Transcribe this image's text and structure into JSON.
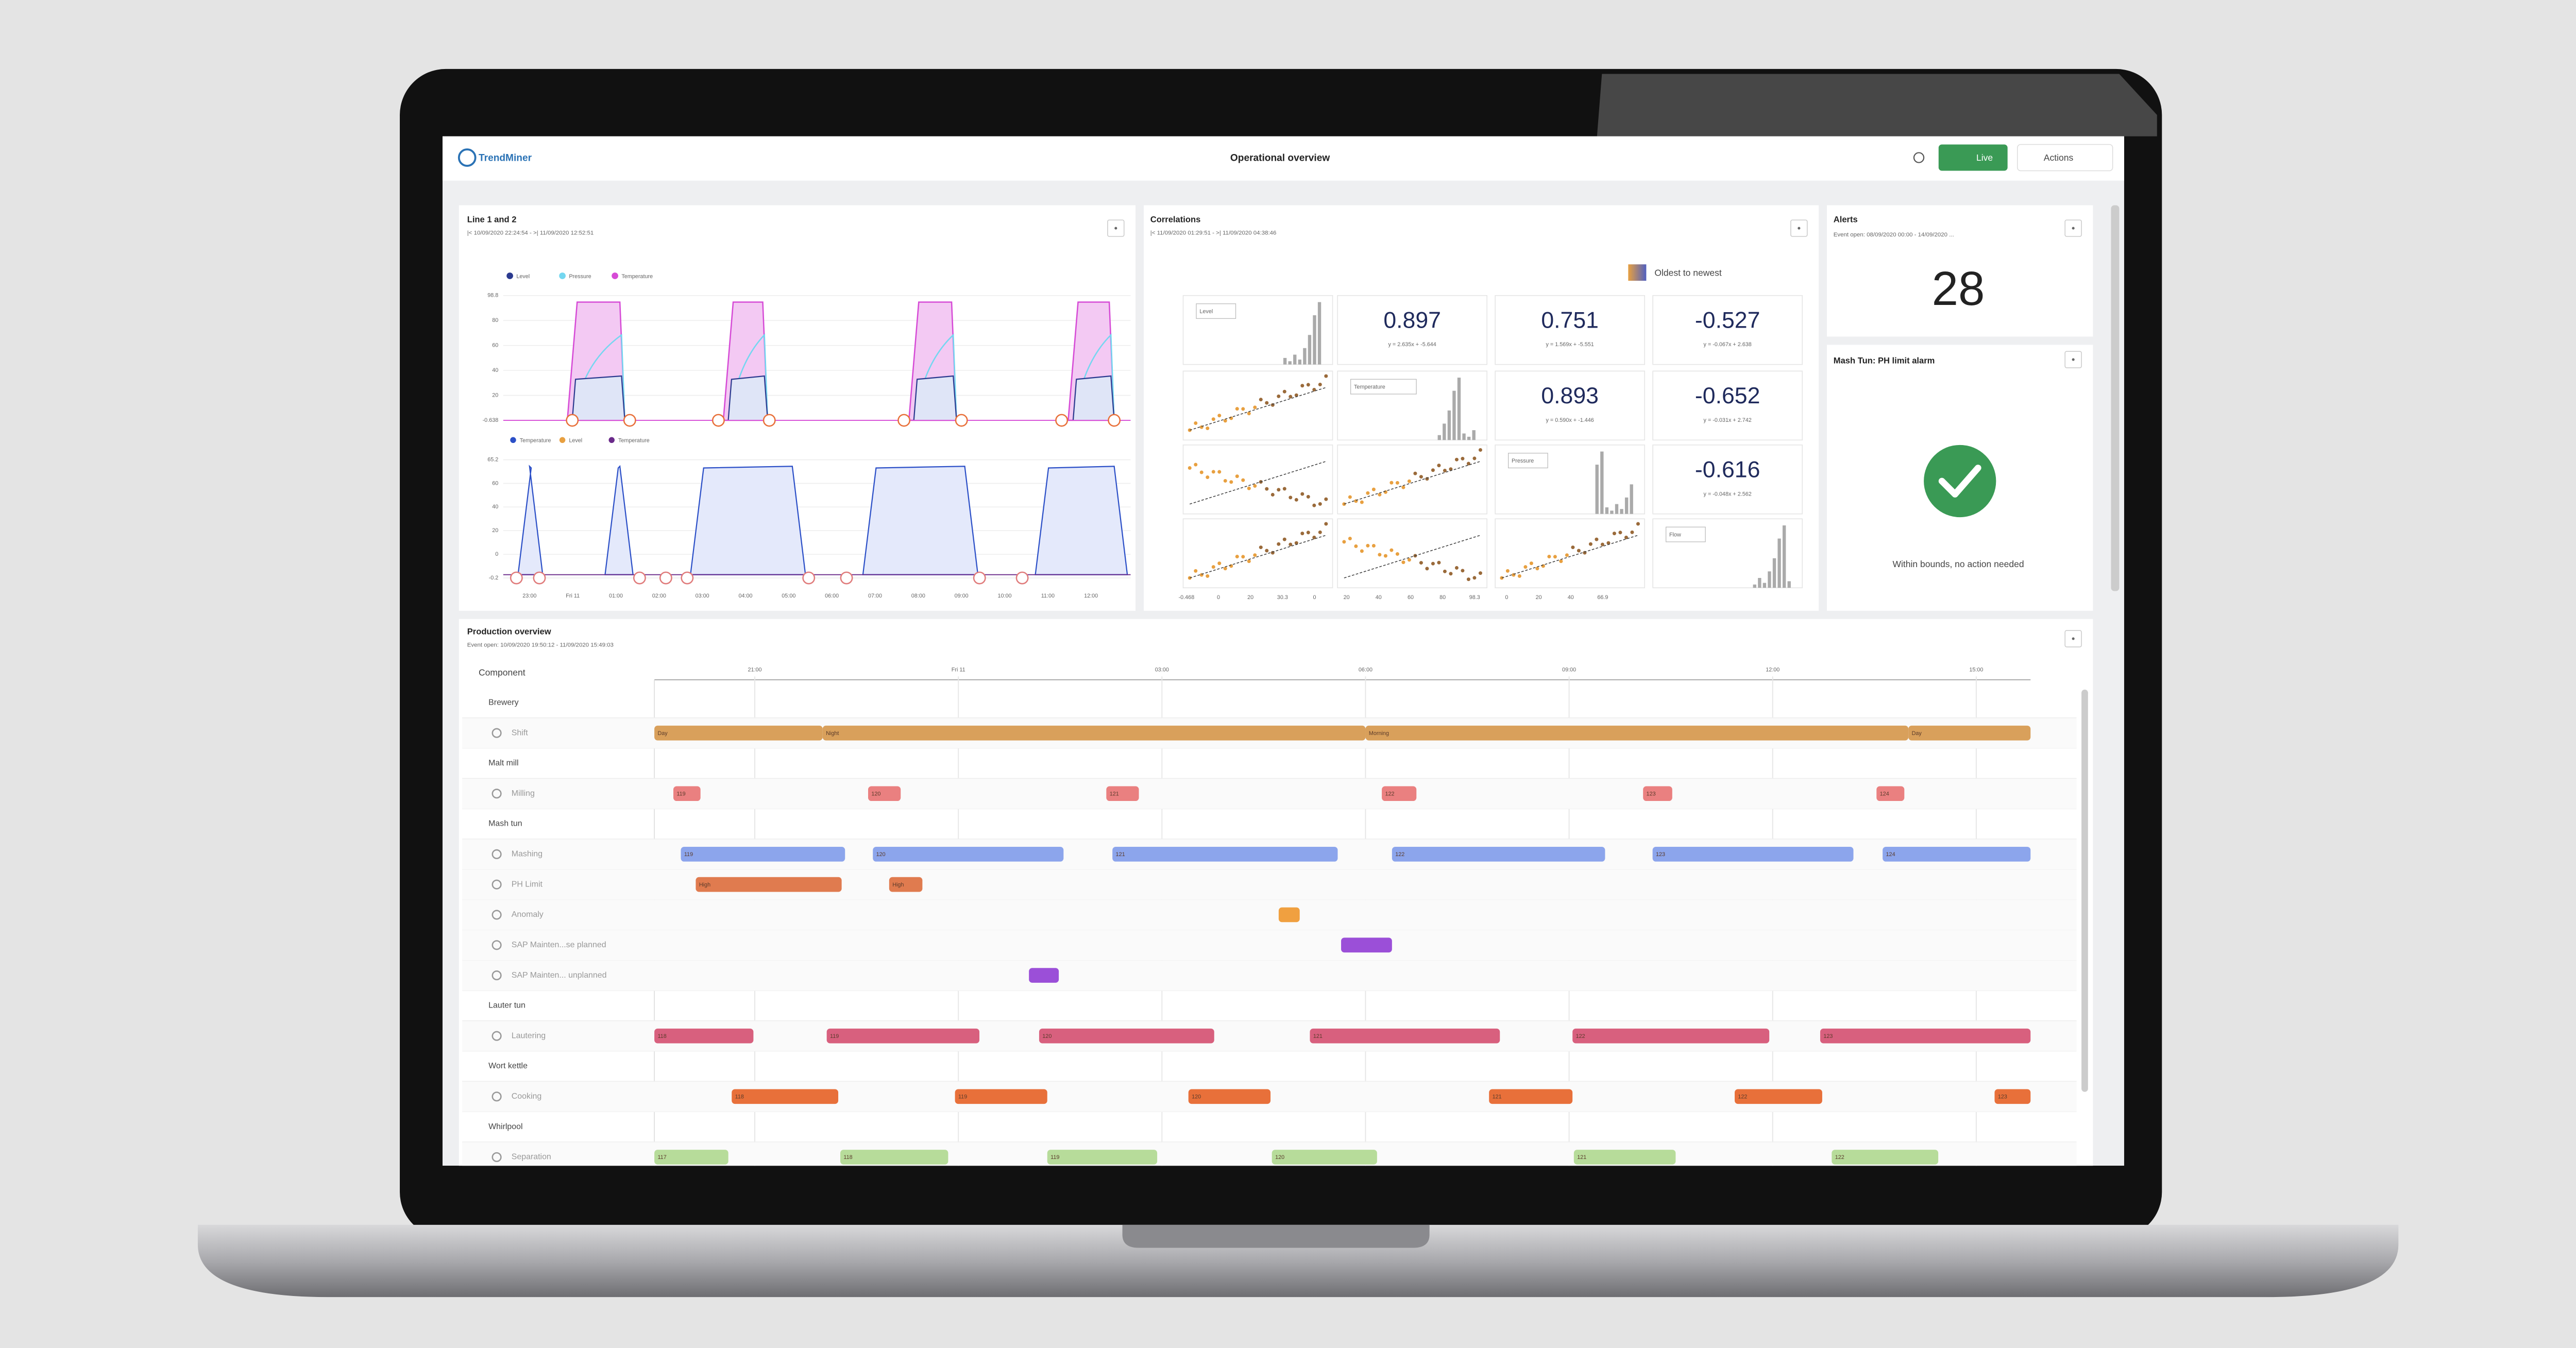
{
  "header": {
    "logo": "TrendMiner",
    "title": "Operational overview",
    "live": "Live",
    "actions": "Actions"
  },
  "line_panel": {
    "title": "Line 1 and 2",
    "subtitle": "|< 10/09/2020 22:24:54 - >| 11/09/2020 12:52:51",
    "legend_top": [
      "Level",
      "Pressure",
      "Temperature"
    ],
    "legend_bottom": [
      "Temperature",
      "Level",
      "Temperature"
    ],
    "yticks_top": [
      "98.8",
      "80",
      "60",
      "40",
      "20",
      "-0.638"
    ],
    "yticks_bottom": [
      "65.2",
      "60",
      "40",
      "20",
      "0",
      "-0.2"
    ],
    "xticks": [
      "23:00",
      "Fri 11",
      "01:00",
      "02:00",
      "03:00",
      "04:00",
      "05:00",
      "06:00",
      "07:00",
      "08:00",
      "09:00",
      "10:00",
      "11:00",
      "12:00"
    ]
  },
  "correlations": {
    "title": "Correlations",
    "subtitle": "|< 11/09/2020 01:29:51 - >| 11/09/2020 04:38:46",
    "legend": "Oldest to newest",
    "tags": [
      "Level",
      "Temperature",
      "Pressure",
      "Flow"
    ],
    "cells": [
      {
        "row": 0,
        "col": 1,
        "r": "0.897",
        "fit": "y = 2.635x + -5.644"
      },
      {
        "row": 0,
        "col": 2,
        "r": "0.751",
        "fit": "y = 1.569x + -5.551"
      },
      {
        "row": 0,
        "col": 3,
        "r": "-0.527",
        "fit": "y = -0.067x + 2.638"
      },
      {
        "row": 1,
        "col": 2,
        "r": "0.893",
        "fit": "y = 0.590x + -1.446"
      },
      {
        "row": 1,
        "col": 3,
        "r": "-0.652",
        "fit": "y = -0.031x + 2.742"
      },
      {
        "row": 2,
        "col": 3,
        "r": "-0.616",
        "fit": "y = -0.048x + 2.562"
      }
    ],
    "xticks": [
      "-0.468",
      "0",
      "20",
      "30.3",
      "0",
      "20",
      "40",
      "60",
      "80",
      "98.3",
      "0",
      "20",
      "40",
      "66.9"
    ]
  },
  "alerts": {
    "title": "Alerts",
    "subtitle": "Event open: 08/09/2020 00:00 - 14/09/2020 ...",
    "count": "28"
  },
  "alarm": {
    "title": "Mash Tun: PH limit alarm",
    "status": "Within bounds, no action needed"
  },
  "production": {
    "title": "Production overview",
    "subtitle": "Event open: 10/09/2020 19:50:12 - 11/09/2020 15:49:03",
    "header": "Component",
    "xlim": [
      19.52,
      39.8
    ],
    "xticks": [
      {
        "value": 21,
        "label": "21:00"
      },
      {
        "value": 24,
        "label": "Fri 11"
      },
      {
        "value": 27,
        "label": "03:00"
      },
      {
        "value": 30,
        "label": "06:00"
      },
      {
        "value": 33,
        "label": "09:00"
      },
      {
        "value": 36,
        "label": "12:00"
      },
      {
        "value": 39,
        "label": "15:00"
      }
    ],
    "rows": [
      {
        "label": "Brewery"
      },
      {
        "label": "Shift",
        "color": "#d9a05b",
        "bars": [
          {
            "start": 19.52,
            "end": 22,
            "label": "Day"
          },
          {
            "start": 22,
            "end": 30,
            "label": "Night"
          },
          {
            "start": 30,
            "end": 38,
            "label": "Morning"
          },
          {
            "start": 38,
            "end": 39.8,
            "label": "Day"
          }
        ]
      },
      {
        "label": "Malt mill"
      },
      {
        "label": "Milling",
        "color": "#ea8080",
        "bars": [
          {
            "start": 19.8,
            "end": 20.2,
            "label": "119"
          },
          {
            "start": 22.67,
            "end": 23.15,
            "label": "120"
          },
          {
            "start": 26.18,
            "end": 26.66,
            "label": "121"
          },
          {
            "start": 30.24,
            "end": 30.75,
            "label": "122"
          },
          {
            "start": 34.09,
            "end": 34.52,
            "label": "123"
          },
          {
            "start": 37.53,
            "end": 37.94,
            "label": "124"
          }
        ]
      },
      {
        "label": "Mash tun"
      },
      {
        "label": "Mashing",
        "color": "#8ca5ec",
        "bars": [
          {
            "start": 19.91,
            "end": 22.33,
            "label": "119"
          },
          {
            "start": 22.74,
            "end": 25.55,
            "label": "120"
          },
          {
            "start": 26.27,
            "end": 29.59,
            "label": "121"
          },
          {
            "start": 30.39,
            "end": 33.53,
            "label": "122"
          },
          {
            "start": 34.23,
            "end": 37.19,
            "label": "123"
          },
          {
            "start": 37.62,
            "end": 39.8,
            "label": "124"
          }
        ]
      },
      {
        "label": "PH Limit",
        "color": "#e07b4f",
        "bars": [
          {
            "start": 20.13,
            "end": 22.28,
            "label": "High"
          },
          {
            "start": 22.98,
            "end": 23.47,
            "label": "High"
          }
        ]
      },
      {
        "label": "Anomaly",
        "color": "#f0a040",
        "bars": [
          {
            "start": 28.72,
            "end": 29.03
          }
        ]
      },
      {
        "label": "SAP Mainten...se planned",
        "color": "#9b4fd8",
        "bars": [
          {
            "start": 29.64,
            "end": 30.39
          }
        ]
      },
      {
        "label": "SAP Mainten... unplanned",
        "color": "#9b4fd8",
        "bars": [
          {
            "start": 25.04,
            "end": 25.48
          }
        ]
      },
      {
        "label": "Lauter tun"
      },
      {
        "label": "Lautering",
        "color": "#d8607e",
        "bars": [
          {
            "start": 19.52,
            "end": 20.98,
            "label": "118"
          },
          {
            "start": 22.06,
            "end": 24.31,
            "label": "119"
          },
          {
            "start": 25.19,
            "end": 27.77,
            "label": "120"
          },
          {
            "start": 29.18,
            "end": 31.98,
            "label": "121"
          },
          {
            "start": 33.05,
            "end": 35.95,
            "label": "122"
          },
          {
            "start": 36.7,
            "end": 39.8,
            "label": "123"
          }
        ]
      },
      {
        "label": "Wort kettle"
      },
      {
        "label": "Cooking",
        "color": "#e8703a",
        "bars": [
          {
            "start": 20.66,
            "end": 22.23,
            "label": "118"
          },
          {
            "start": 23.95,
            "end": 25.31,
            "label": "119"
          },
          {
            "start": 27.39,
            "end": 28.6,
            "label": "120"
          },
          {
            "start": 31.82,
            "end": 33.05,
            "label": "121"
          },
          {
            "start": 35.44,
            "end": 36.73,
            "label": "122"
          },
          {
            "start": 39.27,
            "end": 39.8,
            "label": "123"
          }
        ]
      },
      {
        "label": "Whirlpool"
      },
      {
        "label": "Separation",
        "color": "#b7dc9a",
        "bars": [
          {
            "start": 19.52,
            "end": 20.61,
            "label": "117"
          },
          {
            "start": 22.26,
            "end": 23.85,
            "label": "118"
          },
          {
            "start": 25.31,
            "end": 26.93,
            "label": "119"
          },
          {
            "start": 28.62,
            "end": 30.17,
            "label": "120"
          },
          {
            "start": 33.07,
            "end": 34.57,
            "label": "121"
          },
          {
            "start": 36.87,
            "end": 38.44,
            "label": "122"
          }
        ]
      }
    ]
  }
}
